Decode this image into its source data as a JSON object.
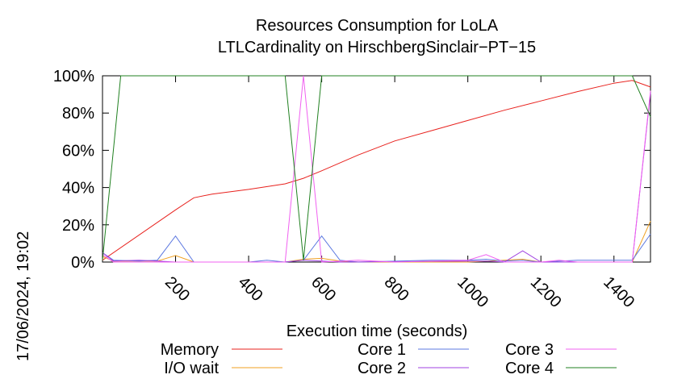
{
  "chart_data": {
    "type": "line",
    "title": "Resources Consumption for LoLA",
    "subtitle": "LTLCardinality on HirschbergSinclair−PT−15",
    "xlabel": "Execution time (seconds)",
    "ylabel": "",
    "timestamp": "17/06/2024, 19:02",
    "xlim": [
      0,
      1500
    ],
    "ylim": [
      0,
      100
    ],
    "x_ticks": [
      200,
      400,
      600,
      800,
      1000,
      1200,
      1400
    ],
    "y_ticks": [
      0,
      20,
      40,
      60,
      80,
      100
    ],
    "y_tick_labels": [
      "0%",
      "20%",
      "40%",
      "60%",
      "80%",
      "100%"
    ],
    "grid": false,
    "legend_placement": "bottom",
    "series": [
      {
        "name": "Memory",
        "color": "#e8221e",
        "points": [
          [
            0,
            1
          ],
          [
            200,
            28
          ],
          [
            250,
            34.5
          ],
          [
            300,
            36.5
          ],
          [
            400,
            39
          ],
          [
            500,
            42
          ],
          [
            550,
            45
          ],
          [
            600,
            49
          ],
          [
            700,
            57.5
          ],
          [
            800,
            65
          ],
          [
            900,
            70.5
          ],
          [
            1000,
            76
          ],
          [
            1100,
            81.5
          ],
          [
            1200,
            86.5
          ],
          [
            1300,
            91.5
          ],
          [
            1400,
            96
          ],
          [
            1450,
            97.5
          ],
          [
            1500,
            94
          ]
        ]
      },
      {
        "name": "I/O wait",
        "color": "#f0a020",
        "points": [
          [
            0,
            3
          ],
          [
            30,
            0.5
          ],
          [
            150,
            0.5
          ],
          [
            200,
            3.5
          ],
          [
            250,
            0
          ],
          [
            500,
            0
          ],
          [
            550,
            1.5
          ],
          [
            600,
            2
          ],
          [
            650,
            0.5
          ],
          [
            700,
            0
          ],
          [
            1000,
            0
          ],
          [
            1100,
            1
          ],
          [
            1150,
            1.5
          ],
          [
            1200,
            0
          ],
          [
            1450,
            0
          ],
          [
            1500,
            22
          ]
        ]
      },
      {
        "name": "Core 1",
        "color": "#5c78e0",
        "points": [
          [
            0,
            5
          ],
          [
            30,
            1
          ],
          [
            100,
            0.5
          ],
          [
            150,
            1
          ],
          [
            200,
            14
          ],
          [
            250,
            0
          ],
          [
            400,
            0
          ],
          [
            450,
            1
          ],
          [
            500,
            0
          ],
          [
            550,
            1
          ],
          [
            600,
            14
          ],
          [
            650,
            1
          ],
          [
            700,
            0
          ],
          [
            900,
            1
          ],
          [
            1000,
            1
          ],
          [
            1050,
            1.5
          ],
          [
            1100,
            0.5
          ],
          [
            1150,
            1
          ],
          [
            1200,
            0
          ],
          [
            1300,
            1
          ],
          [
            1450,
            1
          ],
          [
            1500,
            15
          ]
        ]
      },
      {
        "name": "Core 2",
        "color": "#a040e0",
        "points": [
          [
            0,
            5
          ],
          [
            30,
            0.5
          ],
          [
            100,
            1
          ],
          [
            150,
            0.5
          ],
          [
            200,
            0
          ],
          [
            500,
            0
          ],
          [
            550,
            1
          ],
          [
            600,
            0.5
          ],
          [
            650,
            0
          ],
          [
            1050,
            0.5
          ],
          [
            1100,
            0
          ],
          [
            1150,
            6
          ],
          [
            1200,
            0
          ],
          [
            1450,
            0
          ],
          [
            1500,
            91
          ]
        ]
      },
      {
        "name": "Core 3",
        "color": "#f060f0",
        "points": [
          [
            0,
            4
          ],
          [
            30,
            0
          ],
          [
            500,
            0
          ],
          [
            550,
            100
          ],
          [
            600,
            0
          ],
          [
            700,
            1
          ],
          [
            800,
            0
          ],
          [
            1000,
            1
          ],
          [
            1050,
            4
          ],
          [
            1100,
            0
          ],
          [
            1200,
            0
          ],
          [
            1250,
            1
          ],
          [
            1300,
            0
          ],
          [
            1450,
            0
          ],
          [
            1500,
            92
          ]
        ]
      },
      {
        "name": "Core 4",
        "color": "#208020",
        "points": [
          [
            0,
            1
          ],
          [
            50,
            100
          ],
          [
            500,
            100
          ],
          [
            550,
            1
          ],
          [
            600,
            100
          ],
          [
            1450,
            100
          ],
          [
            1500,
            78
          ]
        ]
      }
    ]
  }
}
